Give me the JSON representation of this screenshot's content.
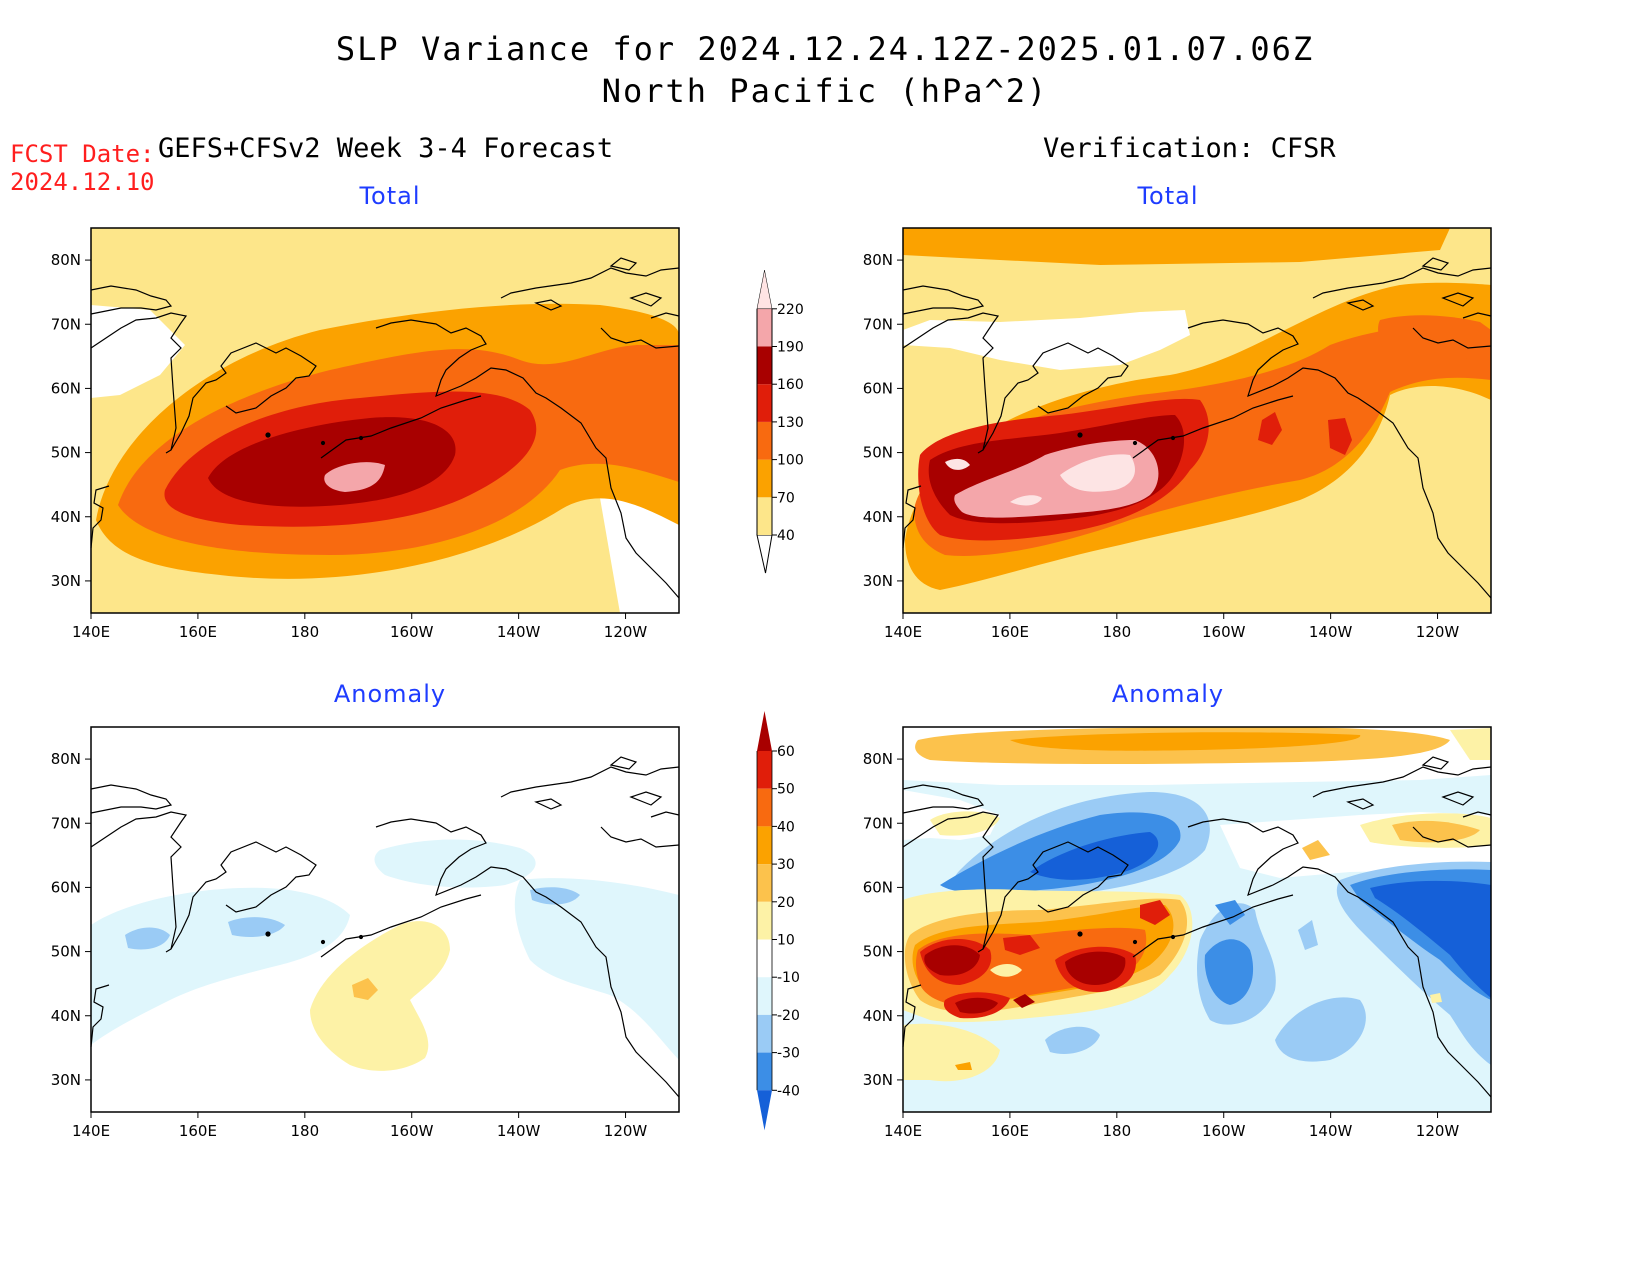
{
  "title_line1": "SLP Variance for 2024.12.24.12Z-2025.01.07.06Z",
  "title_line2": "North Pacific (hPa^2)",
  "fcst_date_label": "FCST Date:",
  "fcst_date_value": "2024.12.10",
  "left_header": "GEFS+CFSv2 Week 3-4 Forecast",
  "right_header": "Verification: CFSR",
  "panels": [
    {
      "id": "forecast-total",
      "subtitle": "Total"
    },
    {
      "id": "verification-total",
      "subtitle": "Total"
    },
    {
      "id": "forecast-anomaly",
      "subtitle": "Anomaly"
    },
    {
      "id": "verification-anomaly",
      "subtitle": "Anomaly"
    }
  ],
  "axes": {
    "lat_labels": [
      "80N",
      "70N",
      "60N",
      "50N",
      "40N",
      "30N"
    ],
    "lat_values": [
      80,
      70,
      60,
      50,
      40,
      30
    ],
    "lat_range": [
      25,
      85
    ],
    "lon_labels": [
      "140E",
      "160E",
      "180",
      "160W",
      "140W",
      "120W"
    ],
    "lon_values": [
      140,
      160,
      180,
      200,
      220,
      240
    ],
    "lon_range": [
      140,
      250
    ]
  },
  "colorbar_total": {
    "levels": [
      "40",
      "70",
      "100",
      "130",
      "160",
      "190",
      "220"
    ],
    "colors": [
      "#fde68a",
      "#fba200",
      "#f86a10",
      "#e01e0a",
      "#a80000",
      "#f4a6aa",
      "#ffe4e4"
    ]
  },
  "colorbar_anomaly": {
    "levels": [
      "60",
      "50",
      "40",
      "30",
      "20",
      "10",
      "-10",
      "-20",
      "-30",
      "-40"
    ],
    "colors": [
      "#a80000",
      "#e01e0a",
      "#f86a10",
      "#fba200",
      "#fcc24c",
      "#fdf2a6",
      "#ffffff",
      "#dff6fc",
      "#9acbf5",
      "#3c8ee6",
      "#1560d8"
    ]
  },
  "fill_colors": {
    "t40": "#fde68a",
    "t70": "#fba200",
    "t100": "#f86a10",
    "t130": "#e01e0a",
    "t160": "#a80000",
    "t190": "#f4a6aa",
    "t220": "#fde4e4",
    "a10": "#fdf2a6",
    "a20": "#fcc24c",
    "a30": "#fba200",
    "a40": "#f86a10",
    "a50": "#e01e0a",
    "a60": "#a80000",
    "an10": "#dff6fc",
    "an20": "#9acbf5",
    "an30": "#3c8ee6",
    "an40": "#1560d8"
  }
}
